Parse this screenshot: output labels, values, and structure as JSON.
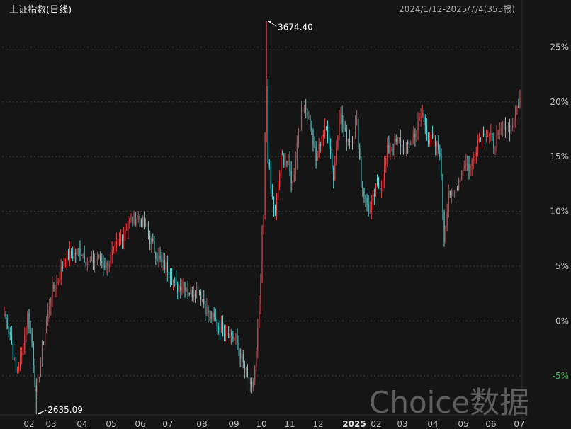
{
  "header": {
    "title": "上证指数(日线)",
    "range": "2024/1/12-2025/7/4(355根)"
  },
  "watermark": "Choice数据",
  "colors": {
    "background": "#151515",
    "up": "#e0484d",
    "down": "#5fd6d6",
    "grid": "#3a3a3a",
    "axis_text": "#bdbdbd",
    "negative_axis_text": "#2db84b"
  },
  "chart_data": {
    "type": "candlestick",
    "title": "上证指数(日线)",
    "y_unit": "percent change",
    "ylim": [
      -8.5,
      28
    ],
    "y_ticks": [
      {
        "label": "25%",
        "value": 25
      },
      {
        "label": "20%",
        "value": 20
      },
      {
        "label": "15%",
        "value": 15
      },
      {
        "label": "10%",
        "value": 10
      },
      {
        "label": "5%",
        "value": 5
      },
      {
        "label": "0%",
        "value": 0
      },
      {
        "label": "-5%",
        "value": -5
      }
    ],
    "x_ticks": [
      "02",
      "03",
      "04",
      "05",
      "06",
      "07",
      "08",
      "09",
      "10",
      "11",
      "12",
      "2025",
      "02",
      "03",
      "04",
      "05",
      "06",
      "07"
    ],
    "annotations": [
      {
        "label": "3674.40",
        "type": "high",
        "value_pct": 27.4
      },
      {
        "label": "2635.09",
        "type": "low",
        "value_pct": -8.5
      }
    ],
    "price_path": [
      [
        0,
        0.7
      ],
      [
        4,
        -1.2
      ],
      [
        8,
        -4.8
      ],
      [
        12,
        -3.0
      ],
      [
        16,
        0.5
      ],
      [
        19,
        -2.0
      ],
      [
        22,
        -7.0
      ],
      [
        25,
        -3.5
      ],
      [
        28,
        -1.0
      ],
      [
        32,
        2.5
      ],
      [
        37,
        3.8
      ],
      [
        42,
        5.8
      ],
      [
        47,
        6.0
      ],
      [
        52,
        6.5
      ],
      [
        58,
        5.2
      ],
      [
        64,
        5.8
      ],
      [
        70,
        5.0
      ],
      [
        78,
        7.0
      ],
      [
        85,
        9.0
      ],
      [
        92,
        9.5
      ],
      [
        97,
        8.5
      ],
      [
        103,
        6.5
      ],
      [
        108,
        5.2
      ],
      [
        113,
        4.8
      ],
      [
        118,
        3.0
      ],
      [
        123,
        3.5
      ],
      [
        128,
        2.5
      ],
      [
        133,
        3.2
      ],
      [
        138,
        1.2
      ],
      [
        143,
        0.2
      ],
      [
        148,
        -0.5
      ],
      [
        154,
        -1.0
      ],
      [
        160,
        -2.0
      ],
      [
        165,
        -4.5
      ],
      [
        170,
        -6.5
      ],
      [
        173,
        -3.0
      ],
      [
        175,
        1.0
      ],
      [
        176,
        3.5
      ],
      [
        177,
        8.0
      ],
      [
        178,
        9.5
      ],
      [
        179,
        16.8
      ],
      [
        180,
        21.5
      ],
      [
        181,
        15.0
      ],
      [
        183,
        12.0
      ],
      [
        186,
        9.5
      ],
      [
        190,
        15.0
      ],
      [
        194,
        14.5
      ],
      [
        198,
        12.5
      ],
      [
        202,
        17.5
      ],
      [
        206,
        20.0
      ],
      [
        210,
        18.0
      ],
      [
        214,
        14.5
      ],
      [
        218,
        17.0
      ],
      [
        222,
        17.5
      ],
      [
        226,
        13.0
      ],
      [
        230,
        19.0
      ],
      [
        234,
        17.0
      ],
      [
        238,
        16.5
      ],
      [
        242,
        18.0
      ],
      [
        245,
        13.0
      ],
      [
        248,
        11.0
      ],
      [
        251,
        10.0
      ],
      [
        255,
        12.0
      ],
      [
        259,
        12.5
      ],
      [
        263,
        15.5
      ],
      [
        267,
        16.0
      ],
      [
        271,
        16.5
      ],
      [
        275,
        15.5
      ],
      [
        279,
        16.5
      ],
      [
        283,
        17.5
      ],
      [
        287,
        19.0
      ],
      [
        291,
        17.0
      ],
      [
        296,
        16.0
      ],
      [
        299,
        15.5
      ],
      [
        302,
        7.5
      ],
      [
        305,
        12.0
      ],
      [
        308,
        11.0
      ],
      [
        312,
        13.0
      ],
      [
        316,
        14.5
      ],
      [
        320,
        14.0
      ],
      [
        324,
        16.0
      ],
      [
        328,
        17.5
      ],
      [
        332,
        17.0
      ],
      [
        336,
        16.2
      ],
      [
        340,
        17.0
      ],
      [
        344,
        18.0
      ],
      [
        348,
        17.5
      ],
      [
        352,
        19.5
      ],
      [
        354,
        20.3
      ]
    ]
  }
}
